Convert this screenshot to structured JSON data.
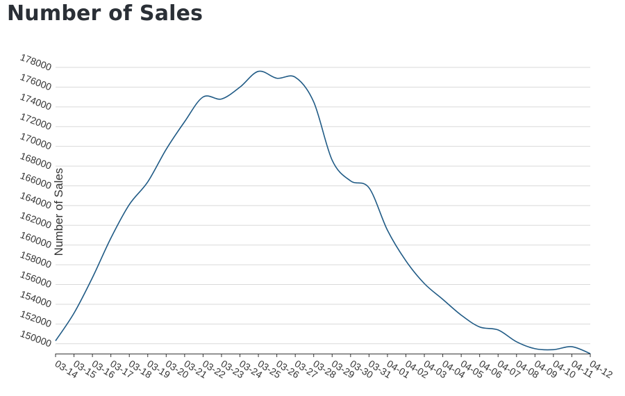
{
  "chart_data": {
    "type": "line",
    "title": "Number of Sales",
    "xlabel": "",
    "ylabel": "Number of Sales",
    "ylim": [
      149000,
      178000
    ],
    "yticks": [
      150000,
      152000,
      154000,
      156000,
      158000,
      160000,
      162000,
      164000,
      166000,
      168000,
      170000,
      172000,
      174000,
      176000,
      178000
    ],
    "grid": true,
    "x": [
      "03-14",
      "03-15",
      "03-16",
      "03-17",
      "03-18",
      "03-19",
      "03-20",
      "03-21",
      "03-22",
      "03-23",
      "03-24",
      "03-25",
      "03-26",
      "03-27",
      "03-28",
      "03-29",
      "03-30",
      "03-31",
      "04-01",
      "04-02",
      "04-03",
      "04-04",
      "04-05",
      "04-06",
      "04-07",
      "04-08",
      "04-09",
      "04-10",
      "04-11",
      "04-12"
    ],
    "series": [
      {
        "color": "#1f5a85",
        "values": [
          150300,
          153100,
          156700,
          160700,
          164100,
          166400,
          169700,
          172500,
          175000,
          174800,
          176000,
          177600,
          176900,
          177000,
          174500,
          168600,
          166500,
          165800,
          161500,
          158400,
          156100,
          154500,
          152900,
          151700,
          151400,
          150200,
          149500,
          149400,
          149700,
          149000
        ]
      }
    ]
  }
}
